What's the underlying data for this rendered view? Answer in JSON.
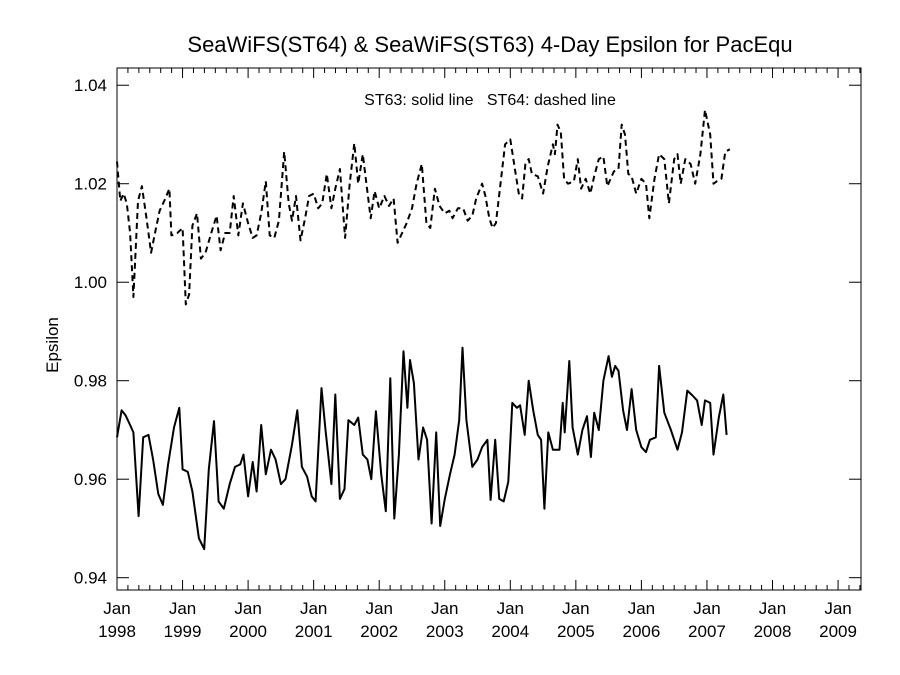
{
  "chart_data": {
    "type": "line",
    "title": "SeaWiFS(ST64) & SeaWiFS(ST63) 4-Day Epsilon for PacEqu",
    "xlabel": "",
    "ylabel": "Epsilon",
    "annotation": "ST63: solid line   ST64: dashed line",
    "xlim": [
      1998.0,
      2009.35
    ],
    "ylim": [
      0.9375,
      1.0435
    ],
    "x_ticks": [
      {
        "value": 1998.0,
        "month": "Jan",
        "year": "1998"
      },
      {
        "value": 1999.0,
        "month": "Jan",
        "year": "1999"
      },
      {
        "value": 2000.0,
        "month": "Jan",
        "year": "2000"
      },
      {
        "value": 2001.0,
        "month": "Jan",
        "year": "2001"
      },
      {
        "value": 2002.0,
        "month": "Jan",
        "year": "2002"
      },
      {
        "value": 2003.0,
        "month": "Jan",
        "year": "2003"
      },
      {
        "value": 2004.0,
        "month": "Jan",
        "year": "2004"
      },
      {
        "value": 2005.0,
        "month": "Jan",
        "year": "2005"
      },
      {
        "value": 2006.0,
        "month": "Jan",
        "year": "2006"
      },
      {
        "value": 2007.0,
        "month": "Jan",
        "year": "2007"
      },
      {
        "value": 2008.0,
        "month": "Jan",
        "year": "2008"
      },
      {
        "value": 2009.0,
        "month": "Jan",
        "year": "2009"
      }
    ],
    "y_ticks": [
      {
        "value": 0.94,
        "label": "0.94"
      },
      {
        "value": 0.96,
        "label": "0.96"
      },
      {
        "value": 0.98,
        "label": "0.98"
      },
      {
        "value": 1.0,
        "label": "1.00"
      },
      {
        "value": 1.02,
        "label": "1.02"
      },
      {
        "value": 1.04,
        "label": "1.04"
      }
    ],
    "series": [
      {
        "name": "ST63",
        "style": "solid",
        "color": "#000000",
        "points": [
          [
            1998.0,
            0.9685
          ],
          [
            1998.07,
            0.974
          ],
          [
            1998.13,
            0.973
          ],
          [
            1998.2,
            0.971
          ],
          [
            1998.25,
            0.9695
          ],
          [
            1998.33,
            0.9525
          ],
          [
            1998.4,
            0.9685
          ],
          [
            1998.48,
            0.969
          ],
          [
            1998.55,
            0.964
          ],
          [
            1998.63,
            0.957
          ],
          [
            1998.7,
            0.9548
          ],
          [
            1998.78,
            0.963
          ],
          [
            1998.87,
            0.9705
          ],
          [
            1998.95,
            0.9745
          ],
          [
            1999.0,
            0.962
          ],
          [
            1999.08,
            0.9615
          ],
          [
            1999.15,
            0.9575
          ],
          [
            1999.25,
            0.948
          ],
          [
            1999.33,
            0.9458
          ],
          [
            1999.4,
            0.962
          ],
          [
            1999.48,
            0.9718
          ],
          [
            1999.55,
            0.9555
          ],
          [
            1999.63,
            0.954
          ],
          [
            1999.72,
            0.959
          ],
          [
            1999.8,
            0.9625
          ],
          [
            1999.88,
            0.963
          ],
          [
            1999.93,
            0.965
          ],
          [
            2000.0,
            0.9565
          ],
          [
            2000.07,
            0.9635
          ],
          [
            2000.13,
            0.9575
          ],
          [
            2000.2,
            0.971
          ],
          [
            2000.27,
            0.961
          ],
          [
            2000.35,
            0.966
          ],
          [
            2000.42,
            0.964
          ],
          [
            2000.5,
            0.959
          ],
          [
            2000.57,
            0.96
          ],
          [
            2000.67,
            0.967
          ],
          [
            2000.75,
            0.974
          ],
          [
            2000.82,
            0.9625
          ],
          [
            2000.9,
            0.9605
          ],
          [
            2000.97,
            0.9565
          ],
          [
            2001.03,
            0.9555
          ],
          [
            2001.12,
            0.9785
          ],
          [
            2001.18,
            0.97
          ],
          [
            2001.27,
            0.959
          ],
          [
            2001.33,
            0.9772
          ],
          [
            2001.4,
            0.956
          ],
          [
            2001.47,
            0.958
          ],
          [
            2001.53,
            0.972
          ],
          [
            2001.62,
            0.971
          ],
          [
            2001.68,
            0.9725
          ],
          [
            2001.75,
            0.965
          ],
          [
            2001.82,
            0.964
          ],
          [
            2001.88,
            0.96
          ],
          [
            2001.95,
            0.9738
          ],
          [
            2002.03,
            0.961
          ],
          [
            2002.1,
            0.9535
          ],
          [
            2002.17,
            0.9805
          ],
          [
            2002.23,
            0.952
          ],
          [
            2002.3,
            0.965
          ],
          [
            2002.37,
            0.986
          ],
          [
            2002.43,
            0.9745
          ],
          [
            2002.47,
            0.9842
          ],
          [
            2002.53,
            0.9795
          ],
          [
            2002.6,
            0.964
          ],
          [
            2002.67,
            0.9705
          ],
          [
            2002.73,
            0.968
          ],
          [
            2002.8,
            0.951
          ],
          [
            2002.87,
            0.9695
          ],
          [
            2002.93,
            0.9505
          ],
          [
            2003.0,
            0.956
          ],
          [
            2003.08,
            0.961
          ],
          [
            2003.15,
            0.965
          ],
          [
            2003.22,
            0.972
          ],
          [
            2003.27,
            0.9867
          ],
          [
            2003.33,
            0.972
          ],
          [
            2003.42,
            0.9625
          ],
          [
            2003.5,
            0.964
          ],
          [
            2003.57,
            0.9665
          ],
          [
            2003.65,
            0.968
          ],
          [
            2003.7,
            0.9558
          ],
          [
            2003.77,
            0.968
          ],
          [
            2003.83,
            0.956
          ],
          [
            2003.9,
            0.9555
          ],
          [
            2003.97,
            0.9595
          ],
          [
            2004.03,
            0.9755
          ],
          [
            2004.1,
            0.9745
          ],
          [
            2004.15,
            0.975
          ],
          [
            2004.22,
            0.969
          ],
          [
            2004.28,
            0.98
          ],
          [
            2004.35,
            0.974
          ],
          [
            2004.42,
            0.969
          ],
          [
            2004.47,
            0.968
          ],
          [
            2004.52,
            0.954
          ],
          [
            2004.58,
            0.9695
          ],
          [
            2004.65,
            0.966
          ],
          [
            2004.75,
            0.966
          ],
          [
            2004.8,
            0.9755
          ],
          [
            2004.83,
            0.9695
          ],
          [
            2004.9,
            0.984
          ],
          [
            2004.95,
            0.9705
          ],
          [
            2005.03,
            0.965
          ],
          [
            2005.1,
            0.97
          ],
          [
            2005.17,
            0.9728
          ],
          [
            2005.23,
            0.9645
          ],
          [
            2005.28,
            0.9735
          ],
          [
            2005.35,
            0.97
          ],
          [
            2005.42,
            0.98
          ],
          [
            2005.5,
            0.985
          ],
          [
            2005.55,
            0.9808
          ],
          [
            2005.6,
            0.983
          ],
          [
            2005.65,
            0.982
          ],
          [
            2005.72,
            0.974
          ],
          [
            2005.78,
            0.97
          ],
          [
            2005.85,
            0.9783
          ],
          [
            2005.92,
            0.97
          ],
          [
            2006.0,
            0.9665
          ],
          [
            2006.07,
            0.9655
          ],
          [
            2006.13,
            0.968
          ],
          [
            2006.22,
            0.9685
          ],
          [
            2006.27,
            0.983
          ],
          [
            2006.35,
            0.9735
          ],
          [
            2006.45,
            0.97
          ],
          [
            2006.55,
            0.966
          ],
          [
            2006.62,
            0.9695
          ],
          [
            2006.7,
            0.978
          ],
          [
            2006.78,
            0.977
          ],
          [
            2006.85,
            0.976
          ],
          [
            2006.92,
            0.971
          ],
          [
            2006.97,
            0.976
          ],
          [
            2007.05,
            0.9755
          ],
          [
            2007.1,
            0.965
          ],
          [
            2007.18,
            0.9725
          ],
          [
            2007.25,
            0.9772
          ],
          [
            2007.3,
            0.969
          ]
        ]
      },
      {
        "name": "ST64",
        "style": "dashed",
        "color": "#000000",
        "points": [
          [
            1998.0,
            1.0245
          ],
          [
            1998.05,
            1.0165
          ],
          [
            1998.1,
            1.018
          ],
          [
            1998.15,
            1.016
          ],
          [
            1998.2,
            1.01
          ],
          [
            1998.25,
            0.997
          ],
          [
            1998.32,
            1.0165
          ],
          [
            1998.38,
            1.0195
          ],
          [
            1998.45,
            1.013
          ],
          [
            1998.52,
            1.006
          ],
          [
            1998.58,
            1.01
          ],
          [
            1998.65,
            1.0145
          ],
          [
            1998.72,
            1.0165
          ],
          [
            1998.8,
            1.019
          ],
          [
            1998.83,
            1.0095
          ],
          [
            1998.92,
            1.01
          ],
          [
            1999.0,
            1.011
          ],
          [
            1999.05,
            0.9955
          ],
          [
            1999.1,
            0.9975
          ],
          [
            1999.15,
            1.0115
          ],
          [
            1999.22,
            1.014
          ],
          [
            1999.28,
            1.0048
          ],
          [
            1999.35,
            1.006
          ],
          [
            1999.45,
            1.0105
          ],
          [
            1999.52,
            1.0135
          ],
          [
            1999.58,
            1.0065
          ],
          [
            1999.65,
            1.01
          ],
          [
            1999.72,
            1.01
          ],
          [
            1999.78,
            1.0175
          ],
          [
            1999.85,
            1.0095
          ],
          [
            1999.92,
            1.016
          ],
          [
            2000.0,
            1.012
          ],
          [
            2000.07,
            1.009
          ],
          [
            2000.13,
            1.0095
          ],
          [
            2000.2,
            1.014
          ],
          [
            2000.27,
            1.0205
          ],
          [
            2000.33,
            1.0095
          ],
          [
            2000.4,
            1.009
          ],
          [
            2000.47,
            1.0125
          ],
          [
            2000.55,
            1.0265
          ],
          [
            2000.62,
            1.016
          ],
          [
            2000.67,
            1.0125
          ],
          [
            2000.73,
            1.0175
          ],
          [
            2000.8,
            1.0085
          ],
          [
            2000.87,
            1.013
          ],
          [
            2000.93,
            1.0175
          ],
          [
            2001.0,
            1.018
          ],
          [
            2001.07,
            1.015
          ],
          [
            2001.13,
            1.016
          ],
          [
            2001.2,
            1.022
          ],
          [
            2001.27,
            1.015
          ],
          [
            2001.33,
            1.019
          ],
          [
            2001.4,
            1.023
          ],
          [
            2001.48,
            1.009
          ],
          [
            2001.55,
            1.02
          ],
          [
            2001.62,
            1.0282
          ],
          [
            2001.68,
            1.02
          ],
          [
            2001.75,
            1.026
          ],
          [
            2001.8,
            1.0205
          ],
          [
            2001.87,
            1.013
          ],
          [
            2001.93,
            1.0185
          ],
          [
            2002.0,
            1.015
          ],
          [
            2002.08,
            1.0175
          ],
          [
            2002.15,
            1.0155
          ],
          [
            2002.22,
            1.017
          ],
          [
            2002.28,
            1.008
          ],
          [
            2002.35,
            1.01
          ],
          [
            2002.42,
            1.012
          ],
          [
            2002.5,
            1.015
          ],
          [
            2002.57,
            1.02
          ],
          [
            2002.65,
            1.024
          ],
          [
            2002.72,
            1.012
          ],
          [
            2002.78,
            1.011
          ],
          [
            2002.85,
            1.019
          ],
          [
            2002.92,
            1.0155
          ],
          [
            2003.0,
            1.014
          ],
          [
            2003.07,
            1.0145
          ],
          [
            2003.12,
            1.013
          ],
          [
            2003.2,
            1.015
          ],
          [
            2003.28,
            1.015
          ],
          [
            2003.35,
            1.0125
          ],
          [
            2003.42,
            1.0135
          ],
          [
            2003.48,
            1.017
          ],
          [
            2003.57,
            1.02
          ],
          [
            2003.62,
            1.0175
          ],
          [
            2003.68,
            1.013
          ],
          [
            2003.73,
            1.011
          ],
          [
            2003.78,
            1.012
          ],
          [
            2003.85,
            1.02
          ],
          [
            2003.92,
            1.028
          ],
          [
            2004.0,
            1.029
          ],
          [
            2004.07,
            1.023
          ],
          [
            2004.13,
            1.018
          ],
          [
            2004.18,
            1.017
          ],
          [
            2004.23,
            1.024
          ],
          [
            2004.28,
            1.025
          ],
          [
            2004.33,
            1.022
          ],
          [
            2004.42,
            1.0215
          ],
          [
            2004.5,
            1.018
          ],
          [
            2004.57,
            1.0235
          ],
          [
            2004.65,
            1.028
          ],
          [
            2004.68,
            1.026
          ],
          [
            2004.72,
            1.032
          ],
          [
            2004.77,
            1.0305
          ],
          [
            2004.82,
            1.021
          ],
          [
            2004.88,
            1.02
          ],
          [
            2004.97,
            1.0205
          ],
          [
            2005.03,
            1.025
          ],
          [
            2005.08,
            1.019
          ],
          [
            2005.15,
            1.021
          ],
          [
            2005.22,
            1.018
          ],
          [
            2005.28,
            1.0215
          ],
          [
            2005.35,
            1.025
          ],
          [
            2005.42,
            1.0255
          ],
          [
            2005.48,
            1.0195
          ],
          [
            2005.53,
            1.021
          ],
          [
            2005.58,
            1.0225
          ],
          [
            2005.65,
            1.023
          ],
          [
            2005.7,
            1.032
          ],
          [
            2005.75,
            1.03
          ],
          [
            2005.8,
            1.022
          ],
          [
            2005.85,
            1.0215
          ],
          [
            2005.92,
            1.018
          ],
          [
            2006.0,
            1.021
          ],
          [
            2006.07,
            1.02
          ],
          [
            2006.12,
            1.013
          ],
          [
            2006.2,
            1.021
          ],
          [
            2006.27,
            1.026
          ],
          [
            2006.35,
            1.025
          ],
          [
            2006.42,
            1.016
          ],
          [
            2006.5,
            1.025
          ],
          [
            2006.55,
            1.026
          ],
          [
            2006.6,
            1.02
          ],
          [
            2006.67,
            1.025
          ],
          [
            2006.75,
            1.024
          ],
          [
            2006.82,
            1.02
          ],
          [
            2006.9,
            1.026
          ],
          [
            2006.97,
            1.035
          ],
          [
            2007.05,
            1.03
          ],
          [
            2007.1,
            1.02
          ],
          [
            2007.15,
            1.0205
          ],
          [
            2007.22,
            1.021
          ],
          [
            2007.28,
            1.0265
          ],
          [
            2007.35,
            1.027
          ]
        ]
      }
    ]
  }
}
